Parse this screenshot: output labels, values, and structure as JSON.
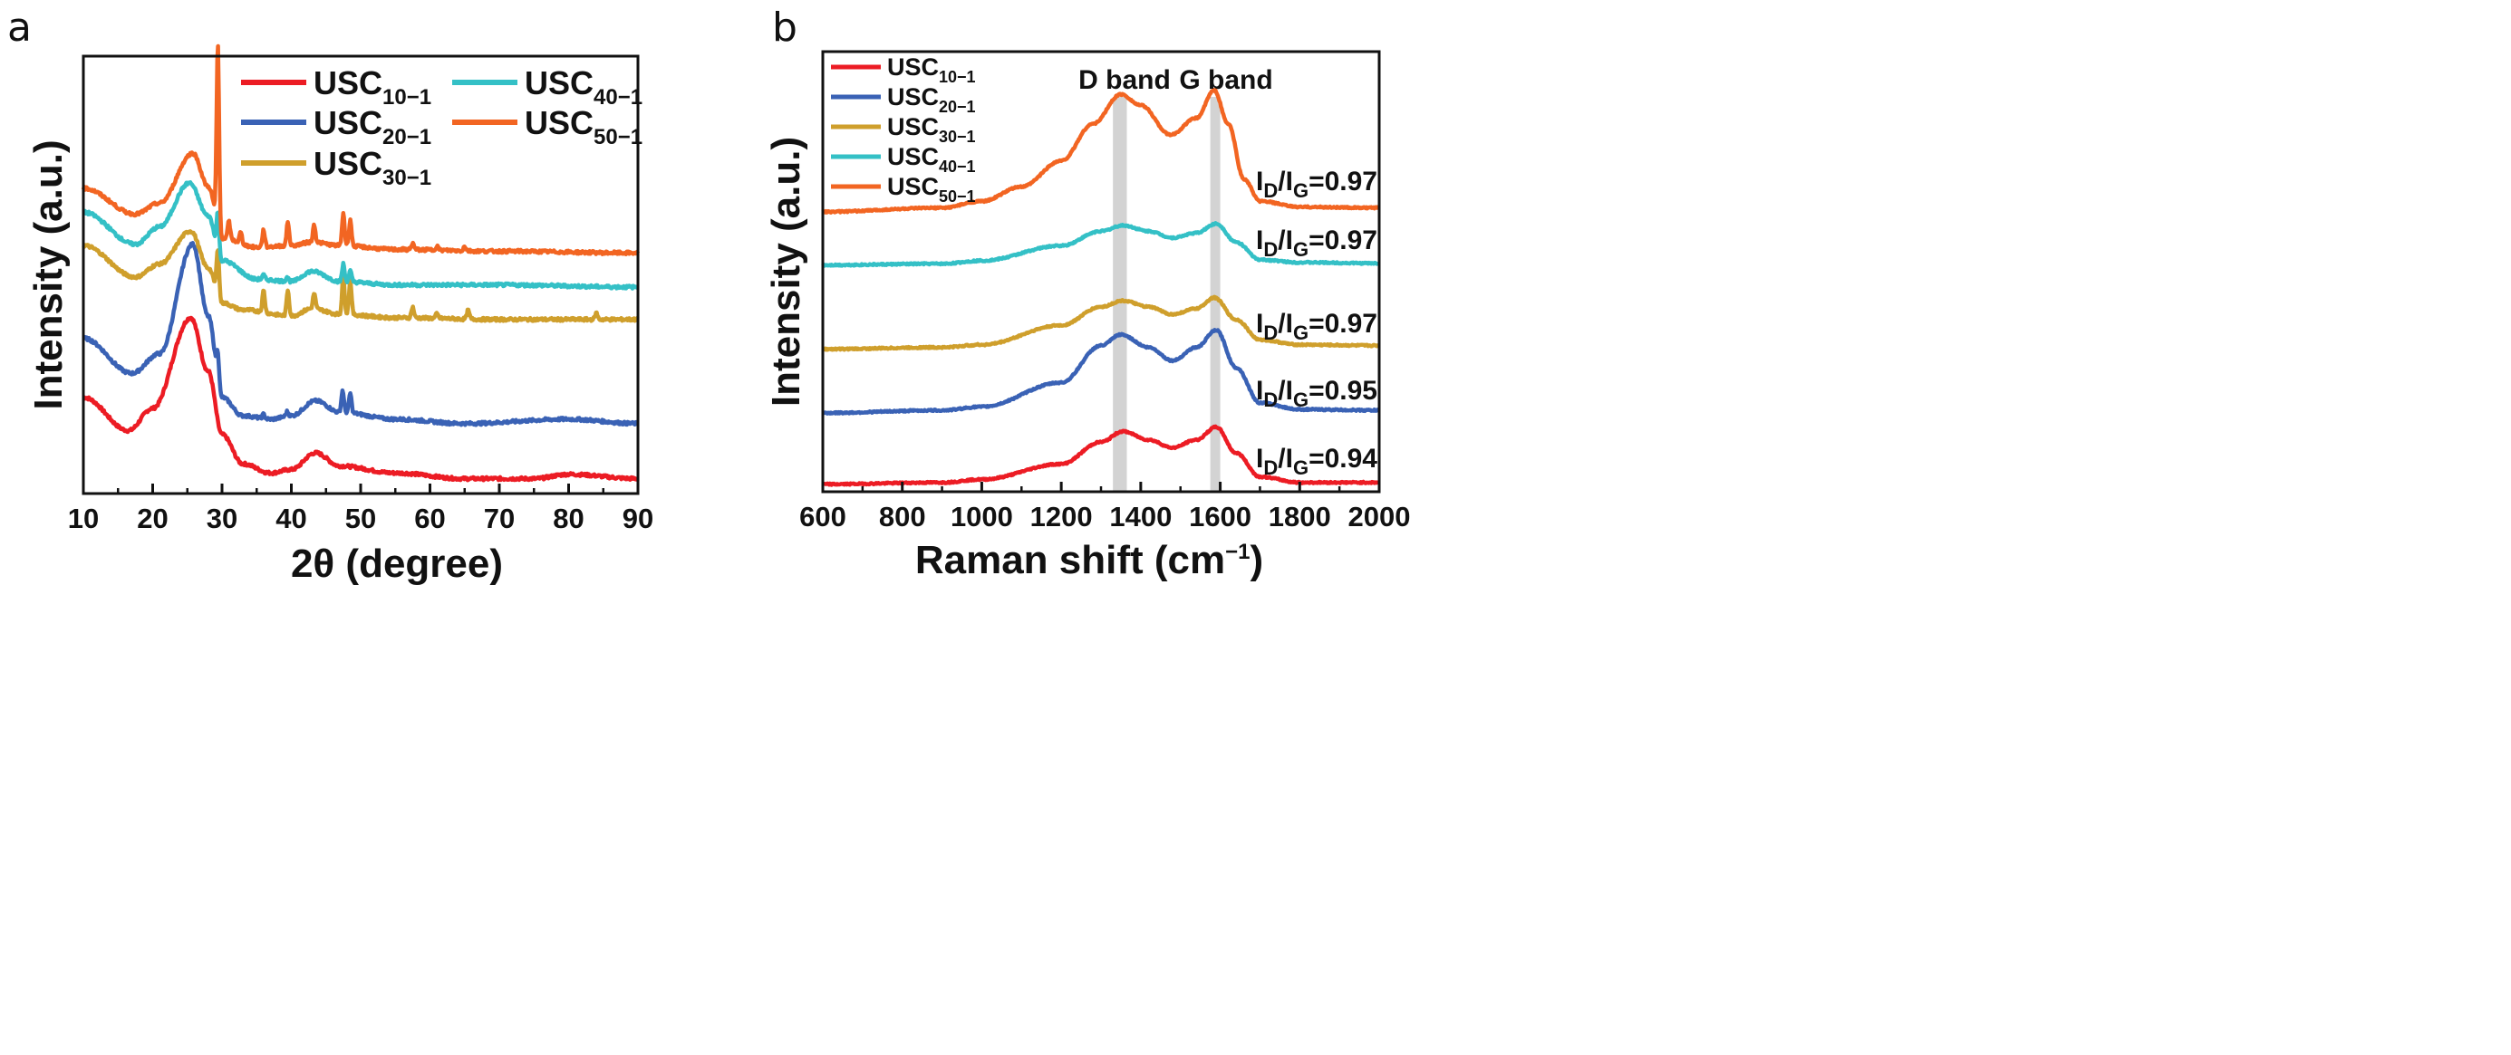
{
  "chart_data": [
    {
      "panel": "a",
      "type": "line",
      "xlabel": "2θ (degree)",
      "ylabel": "Intensity (a.u.)",
      "xlim": [
        10,
        90
      ],
      "ylim": [
        0,
        100
      ],
      "xticks": [
        10,
        20,
        30,
        40,
        50,
        60,
        70,
        80,
        90
      ],
      "legend_position": "top-right",
      "series": [
        {
          "name": "USC",
          "sub": "10−1",
          "color": "#ec1c24",
          "x": [
            10,
            16.5,
            20,
            25.5,
            28,
            30,
            33,
            37,
            40,
            43.5,
            47,
            55,
            65,
            75,
            80,
            90
          ],
          "y": [
            22,
            14.4,
            19.5,
            40.2,
            28,
            13.5,
            6.8,
            4.7,
            5.5,
            9.3,
            6.3,
            4.7,
            3.4,
            3.4,
            4.4,
            3.4
          ],
          "sharp_peaks": []
        },
        {
          "name": "USC",
          "sub": "20−1",
          "color": "#3a62b5",
          "x": [
            10,
            17,
            21,
            25.8,
            28,
            30,
            33,
            37,
            40,
            43.5,
            47,
            55,
            65,
            80,
            90
          ],
          "y": [
            35.5,
            27.5,
            32,
            57,
            40.6,
            22,
            17.8,
            17,
            17.8,
            21.2,
            18.6,
            17,
            16,
            17,
            16
          ],
          "sharp_peaks": [
            [
              29.4,
              7
            ],
            [
              36,
              1
            ],
            [
              39.4,
              1
            ],
            [
              47.4,
              5
            ],
            [
              48.5,
              4.5
            ]
          ]
        },
        {
          "name": "USC",
          "sub": "30−1",
          "color": "#cf9f2c",
          "x": [
            10,
            17.5,
            21,
            25.5,
            28,
            30,
            33,
            40,
            43,
            47,
            55,
            70,
            90
          ],
          "y": [
            56.7,
            49.5,
            52.5,
            60,
            51.6,
            43.6,
            42,
            40.6,
            42.3,
            41,
            40.2,
            39.8,
            39.8
          ],
          "sharp_peaks": [
            [
              29.4,
              11
            ],
            [
              36,
              5
            ],
            [
              39.5,
              6
            ],
            [
              43.3,
              3.5
            ],
            [
              47.5,
              9
            ],
            [
              48.5,
              8
            ],
            [
              57.5,
              2.5
            ],
            [
              61,
              1
            ],
            [
              65.5,
              2
            ],
            [
              84,
              1.5
            ]
          ]
        },
        {
          "name": "USC",
          "sub": "40−1",
          "color": "#34c0c6",
          "x": [
            10,
            17.5,
            21,
            25.3,
            28,
            30,
            35,
            40,
            43,
            47,
            55,
            70,
            90
          ],
          "y": [
            64.3,
            57,
            61,
            71,
            63.5,
            53.3,
            49,
            48.5,
            50.8,
            48.5,
            47.7,
            47.7,
            47.2
          ],
          "sharp_peaks": [
            [
              29.4,
              9
            ],
            [
              36,
              1
            ],
            [
              39.4,
              1
            ],
            [
              47.5,
              4
            ],
            [
              48.5,
              2.5
            ]
          ]
        },
        {
          "name": "USC",
          "sub": "50−1",
          "color": "#f26522",
          "x": [
            10,
            17.5,
            21,
            25.8,
            28,
            30,
            35,
            40,
            43,
            47,
            55,
            70,
            90
          ],
          "y": [
            69.8,
            63.9,
            66.4,
            77.8,
            70.2,
            58.4,
            56.3,
            56.7,
            57.5,
            56.7,
            55.8,
            55.4,
            55
          ],
          "sharp_peaks": [
            [
              29.4,
              42
            ],
            [
              31,
              4
            ],
            [
              32.7,
              2.5
            ],
            [
              36,
              4
            ],
            [
              39.5,
              5.5
            ],
            [
              43.3,
              4
            ],
            [
              47.5,
              7.5
            ],
            [
              48.5,
              6
            ],
            [
              57.5,
              1.5
            ],
            [
              61,
              1
            ],
            [
              65,
              1
            ]
          ]
        }
      ]
    },
    {
      "panel": "b",
      "type": "line",
      "xlabel": "Raman shift (cm",
      "xlabel_sup": "−1",
      "xlabel_end": ")",
      "ylabel": "Intensity (a.u.)",
      "xlim": [
        600,
        2000
      ],
      "ylim": [
        0,
        100
      ],
      "xticks": [
        600,
        800,
        1000,
        1200,
        1400,
        1600,
        1800,
        2000
      ],
      "legend_position": "top-left",
      "bands": [
        {
          "label": "D band",
          "range": [
            1330,
            1365
          ]
        },
        {
          "label": "G band",
          "range": [
            1575,
            1600
          ]
        }
      ],
      "series": [
        {
          "name": "USC",
          "sub": "10−1",
          "color": "#ec1c24",
          "ratio": "0.94",
          "x": [
            600,
            900,
            1000,
            1200,
            1300,
            1355,
            1420,
            1480,
            1540,
            1590,
            1640,
            1700,
            1800,
            2000
          ],
          "y": [
            1.7,
            2.1,
            2.8,
            6.3,
            11.3,
            13.7,
            11.8,
            10,
            11.8,
            14.7,
            8.8,
            3.4,
            2.1,
            2.1
          ]
        },
        {
          "name": "USC",
          "sub": "20−1",
          "color": "#3a62b5",
          "ratio": "0.95",
          "x": [
            600,
            900,
            1000,
            1200,
            1300,
            1350,
            1420,
            1480,
            1540,
            1590,
            1640,
            1700,
            1800,
            2000
          ],
          "y": [
            17.9,
            18.5,
            19.3,
            24.8,
            33.2,
            35.7,
            32.8,
            29.8,
            32.8,
            36.7,
            28.2,
            20.2,
            18.7,
            18.5
          ]
        },
        {
          "name": "USC",
          "sub": "30−1",
          "color": "#cf9f2c",
          "ratio": "0.97",
          "x": [
            600,
            900,
            1000,
            1200,
            1300,
            1355,
            1420,
            1480,
            1540,
            1585,
            1640,
            1700,
            1800,
            2000
          ],
          "y": [
            32.4,
            32.8,
            33.4,
            37.8,
            42,
            43.4,
            42,
            40.3,
            41.6,
            44.1,
            39.1,
            34.5,
            33.4,
            33.2
          ]
        },
        {
          "name": "USC",
          "sub": "40−1",
          "color": "#34c0c6",
          "ratio": "0.97",
          "x": [
            600,
            900,
            1000,
            1200,
            1300,
            1355,
            1420,
            1480,
            1540,
            1590,
            1640,
            1700,
            1800,
            2000
          ],
          "y": [
            51.5,
            51.8,
            52.5,
            55.9,
            59.2,
            60.5,
            59.2,
            57.7,
            58.8,
            60.9,
            56.7,
            52.7,
            52.1,
            51.9
          ]
        },
        {
          "name": "USC",
          "sub": "50−1",
          "color": "#f26522",
          "ratio": "0.97",
          "x": [
            600,
            900,
            1000,
            1100,
            1200,
            1280,
            1350,
            1400,
            1475,
            1540,
            1585,
            1620,
            1660,
            1700,
            1800,
            2000
          ],
          "y": [
            63.6,
            64.5,
            66,
            69.3,
            75.2,
            83.6,
            90.3,
            87.8,
            81.1,
            84.9,
            91.2,
            83.6,
            71,
            66,
            64.7,
            64.5
          ]
        }
      ],
      "ratio_label_prefix": [
        "I",
        "D",
        "/I",
        "G",
        "="
      ]
    }
  ],
  "panels": {
    "a": "a",
    "b": "b"
  }
}
